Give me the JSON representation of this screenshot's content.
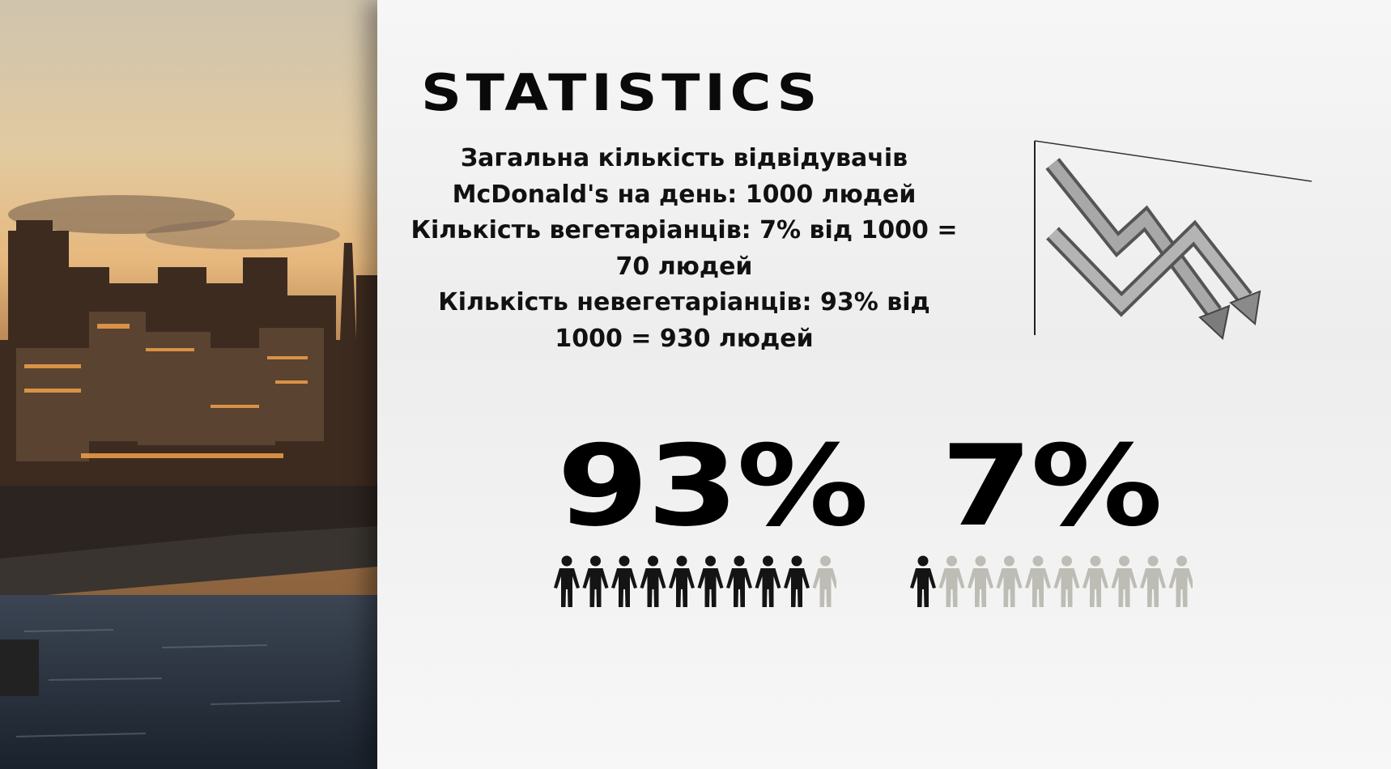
{
  "slide": {
    "title": "STATISTICS",
    "description_lines": [
      "Загальна кількість відвідувачів",
      "McDonald's на день: 1000 людей",
      "Кількість вегетаріанців: 7% від 1000 =",
      "70 людей",
      "Кількість невегетаріанців: 93% від",
      "1000 = 930 людей"
    ]
  },
  "stats": [
    {
      "value_label": "93%",
      "filled": 9,
      "total": 10
    },
    {
      "value_label": "7%",
      "filled": 1,
      "total": 10
    }
  ],
  "colors": {
    "filled_person": "#141414",
    "empty_person": "#bdbdb5",
    "text": "#0a0a0a"
  },
  "icons": {
    "decor": "declining-arrows-icon",
    "person": "person-icon"
  }
}
